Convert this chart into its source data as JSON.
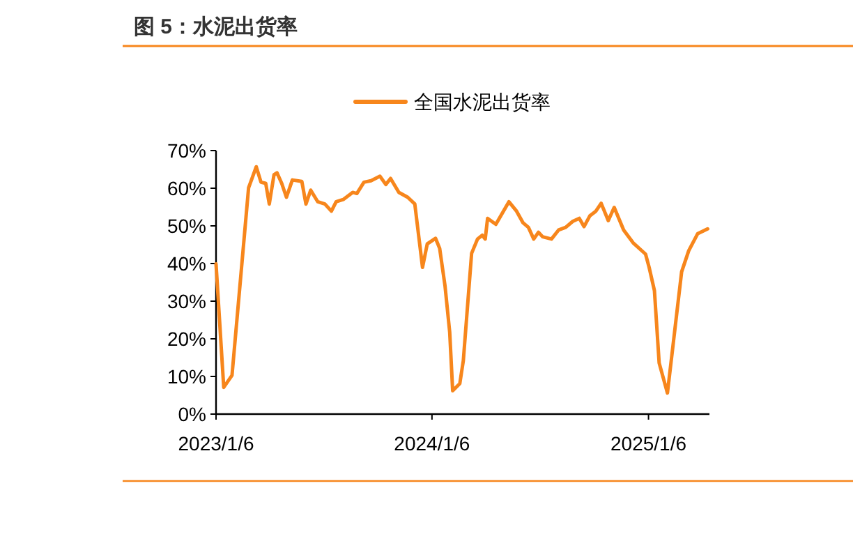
{
  "chart_data": {
    "type": "line",
    "title": "图 5：水泥出货率",
    "x": [
      "2023-01-06",
      "2023-01-19",
      "2023-02-02",
      "2023-03-02",
      "2023-03-15",
      "2023-03-23",
      "2023-03-31",
      "2023-04-06",
      "2023-04-14",
      "2023-04-19",
      "2023-04-27",
      "2023-05-05",
      "2023-05-15",
      "2023-05-31",
      "2023-06-07",
      "2023-06-15",
      "2023-06-27",
      "2023-07-09",
      "2023-07-20",
      "2023-07-28",
      "2023-08-09",
      "2023-08-25",
      "2023-09-01",
      "2023-09-13",
      "2023-09-25",
      "2023-10-10",
      "2023-10-20",
      "2023-10-28",
      "2023-11-11",
      "2023-11-26",
      "2023-12-08",
      "2023-12-21",
      "2023-12-29",
      "2024-01-12",
      "2024-01-19",
      "2024-01-28",
      "2024-02-05",
      "2024-02-10",
      "2024-02-22",
      "2024-02-28",
      "2024-03-13",
      "2024-03-23",
      "2024-03-31",
      "2024-04-05",
      "2024-04-09",
      "2024-04-23",
      "2024-05-15",
      "2024-05-28",
      "2024-06-08",
      "2024-06-17",
      "2024-06-26",
      "2024-07-04",
      "2024-07-11",
      "2024-07-26",
      "2024-08-07",
      "2024-08-19",
      "2024-08-31",
      "2024-09-11",
      "2024-09-19",
      "2024-09-29",
      "2024-10-09",
      "2024-10-18",
      "2024-10-30",
      "2024-11-09",
      "2024-11-25",
      "2024-12-11",
      "2025-01-01",
      "2025-01-07",
      "2025-01-16",
      "2025-01-24",
      "2025-02-07",
      "2025-02-19",
      "2025-03-03",
      "2025-03-15",
      "2025-03-30",
      "2025-04-16"
    ],
    "series": [
      {
        "name": "全国水泥出货率",
        "color": "#f7861c",
        "values": [
          39.9,
          7.1,
          10.3,
          60.1,
          65.7,
          61.6,
          61.3,
          55.8,
          63.6,
          64.1,
          61.3,
          57.6,
          62.2,
          61.8,
          55.8,
          59.5,
          56.4,
          55.8,
          53.9,
          56.4,
          57.0,
          58.9,
          58.6,
          61.6,
          62.0,
          63.2,
          61.0,
          62.6,
          58.9,
          57.6,
          55.8,
          39.0,
          45.2,
          46.7,
          44.0,
          34.1,
          21.7,
          6.2,
          8.1,
          14.2,
          42.7,
          46.5,
          47.5,
          46.5,
          52.0,
          50.4,
          56.4,
          53.9,
          50.8,
          49.6,
          46.5,
          48.3,
          47.1,
          46.5,
          48.9,
          49.6,
          51.2,
          52.0,
          49.8,
          52.7,
          53.9,
          56.0,
          51.4,
          54.9,
          48.9,
          45.5,
          42.5,
          39.0,
          32.8,
          13.6,
          5.6,
          21.7,
          37.8,
          43.4,
          47.9,
          49.2
        ]
      }
    ],
    "xlim": [
      "2023-01-06",
      "2025-04-19"
    ],
    "xticks": [
      {
        "value": "2023-01-06",
        "label": "2023/1/6"
      },
      {
        "value": "2024-01-06",
        "label": "2024/1/6"
      },
      {
        "value": "2025-01-06",
        "label": "2025/1/6"
      }
    ],
    "ylim": [
      0,
      70
    ],
    "yticks": [
      {
        "value": 0,
        "label": "0%"
      },
      {
        "value": 10,
        "label": "10%"
      },
      {
        "value": 20,
        "label": "20%"
      },
      {
        "value": 30,
        "label": "30%"
      },
      {
        "value": 40,
        "label": "40%"
      },
      {
        "value": 50,
        "label": "50%"
      },
      {
        "value": 60,
        "label": "60%"
      },
      {
        "value": 70,
        "label": "70%"
      }
    ],
    "legend": "top",
    "grid": false,
    "marker": "none",
    "line_style": "solid"
  }
}
